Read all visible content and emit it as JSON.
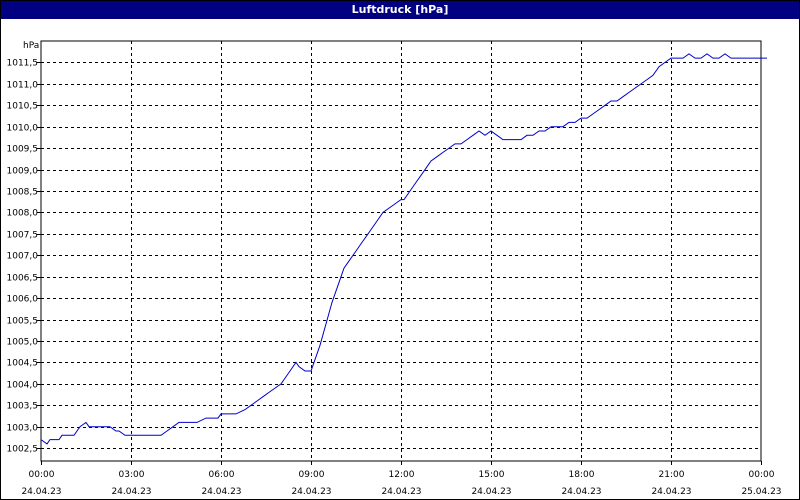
{
  "window": {
    "title": "Luftdruck [hPa]"
  },
  "chart_data": {
    "type": "line",
    "title": "Luftdruck [hPa]",
    "unit_label": "hPa",
    "ylim": [
      1002.2,
      1012.0
    ],
    "y_ticks": [
      "1002,5",
      "1003,0",
      "1003,5",
      "1004,0",
      "1004,5",
      "1005,0",
      "1005,5",
      "1006,0",
      "1006,5",
      "1007,0",
      "1007,5",
      "1008,0",
      "1008,5",
      "1009,0",
      "1009,5",
      "1010,0",
      "1010,5",
      "1011,0",
      "1011,5"
    ],
    "y_tick_values": [
      1002.5,
      1003.0,
      1003.5,
      1004.0,
      1004.5,
      1005.0,
      1005.5,
      1006.0,
      1006.5,
      1007.0,
      1007.5,
      1008.0,
      1008.5,
      1009.0,
      1009.5,
      1010.0,
      1010.5,
      1011.0,
      1011.5
    ],
    "xlim_hours": [
      0,
      24
    ],
    "x_ticks": [
      {
        "hour": 0,
        "time": "00:00",
        "date": "24.04.23"
      },
      {
        "hour": 3,
        "time": "03:00",
        "date": "24.04.23"
      },
      {
        "hour": 6,
        "time": "06:00",
        "date": "24.04.23"
      },
      {
        "hour": 9,
        "time": "09:00",
        "date": "24.04.23"
      },
      {
        "hour": 12,
        "time": "12:00",
        "date": "24.04.23"
      },
      {
        "hour": 15,
        "time": "15:00",
        "date": "24.04.23"
      },
      {
        "hour": 18,
        "time": "18:00",
        "date": "24.04.23"
      },
      {
        "hour": 21,
        "time": "21:00",
        "date": "24.04.23"
      },
      {
        "hour": 24,
        "time": "00:00",
        "date": "25.04.23"
      }
    ],
    "grid": true,
    "series": [
      {
        "color": "#0000cc",
        "x": [
          0.0,
          0.2,
          0.3,
          0.6,
          0.7,
          1.0,
          1.1,
          1.3,
          1.5,
          1.6,
          1.7,
          1.9,
          2.0,
          2.3,
          2.5,
          2.6,
          2.8,
          3.0,
          3.2,
          3.5,
          3.8,
          4.0,
          4.2,
          4.4,
          4.6,
          4.8,
          5.0,
          5.2,
          5.5,
          5.7,
          5.9,
          6.0,
          6.2,
          6.5,
          6.8,
          7.0,
          7.2,
          7.4,
          7.6,
          7.8,
          8.0,
          8.1,
          8.3,
          8.5,
          8.6,
          8.8,
          9.0,
          9.1,
          9.3,
          9.5,
          9.7,
          9.9,
          10.0,
          10.1,
          10.3,
          10.5,
          10.7,
          10.9,
          11.0,
          11.2,
          11.4,
          11.6,
          11.8,
          12.0,
          12.1,
          12.3,
          12.5,
          12.7,
          12.9,
          13.0,
          13.2,
          13.4,
          13.6,
          13.8,
          14.0,
          14.2,
          14.4,
          14.6,
          14.8,
          15.0,
          15.2,
          15.4,
          15.6,
          15.8,
          16.0,
          16.2,
          16.4,
          16.6,
          16.8,
          17.0,
          17.2,
          17.4,
          17.6,
          17.8,
          18.0,
          18.2,
          18.4,
          18.6,
          18.8,
          19.0,
          19.2,
          19.4,
          19.6,
          19.8,
          20.0,
          20.2,
          20.4,
          20.6,
          20.8,
          21.0,
          21.2,
          21.4,
          21.6,
          21.8,
          22.0,
          22.2,
          22.4,
          22.6,
          22.8,
          23.0,
          23.2,
          23.4,
          23.6,
          23.8,
          24.0,
          24.2
        ],
        "y": [
          1002.7,
          1002.6,
          1002.7,
          1002.7,
          1002.8,
          1002.8,
          1002.8,
          1003.0,
          1003.1,
          1003.0,
          1003.0,
          1003.0,
          1003.0,
          1003.0,
          1002.9,
          1002.9,
          1002.8,
          1002.8,
          1002.8,
          1002.8,
          1002.8,
          1002.8,
          1002.9,
          1003.0,
          1003.1,
          1003.1,
          1003.1,
          1003.1,
          1003.2,
          1003.2,
          1003.2,
          1003.3,
          1003.3,
          1003.3,
          1003.4,
          1003.5,
          1003.6,
          1003.7,
          1003.8,
          1003.9,
          1004.0,
          1004.1,
          1004.3,
          1004.5,
          1004.4,
          1004.3,
          1004.3,
          1004.5,
          1004.9,
          1005.4,
          1005.9,
          1006.3,
          1006.5,
          1006.7,
          1006.9,
          1007.1,
          1007.3,
          1007.5,
          1007.6,
          1007.8,
          1008.0,
          1008.1,
          1008.2,
          1008.3,
          1008.3,
          1008.5,
          1008.7,
          1008.9,
          1009.1,
          1009.2,
          1009.3,
          1009.4,
          1009.5,
          1009.6,
          1009.6,
          1009.7,
          1009.8,
          1009.9,
          1009.8,
          1009.9,
          1009.8,
          1009.7,
          1009.7,
          1009.7,
          1009.7,
          1009.8,
          1009.8,
          1009.9,
          1009.9,
          1010.0,
          1010.0,
          1010.0,
          1010.1,
          1010.1,
          1010.2,
          1010.2,
          1010.3,
          1010.4,
          1010.5,
          1010.6,
          1010.6,
          1010.7,
          1010.8,
          1010.9,
          1011.0,
          1011.1,
          1011.2,
          1011.4,
          1011.5,
          1011.6,
          1011.6,
          1011.6,
          1011.7,
          1011.6,
          1011.6,
          1011.7,
          1011.6,
          1011.6,
          1011.7,
          1011.6,
          1011.6,
          1011.6,
          1011.6,
          1011.6,
          1011.6,
          1011.6
        ]
      }
    ]
  }
}
